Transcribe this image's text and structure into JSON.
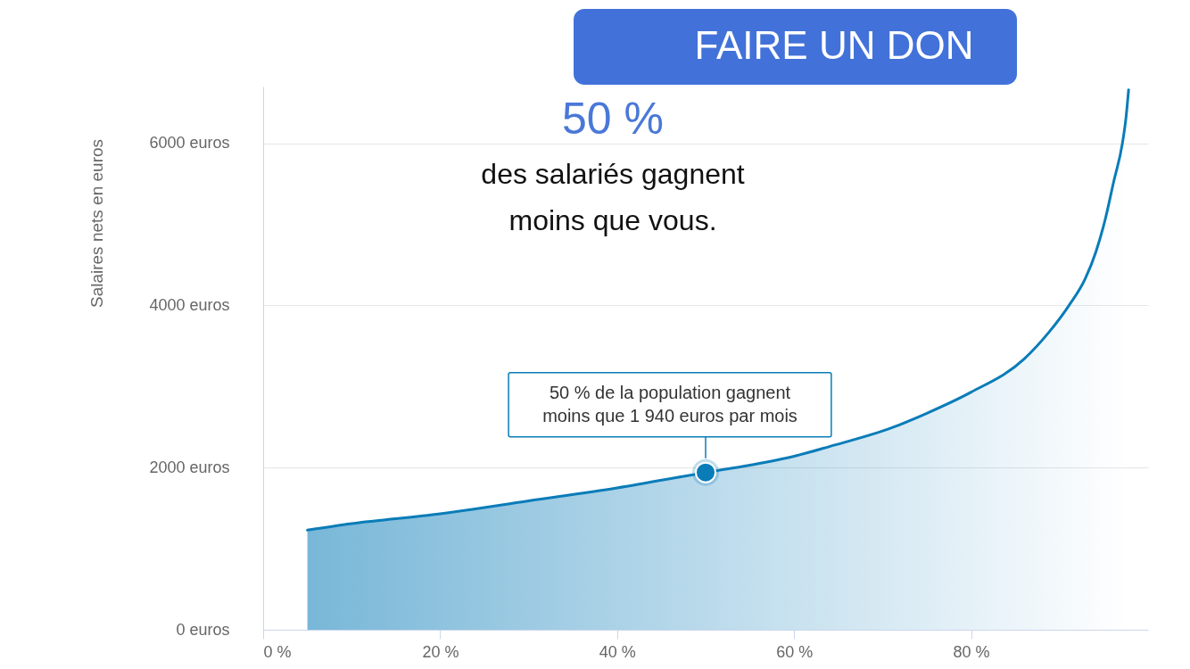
{
  "chart_data": {
    "type": "area",
    "ylabel": "Salaires nets en euros",
    "xlim": [
      0,
      100
    ],
    "xticks": [
      {
        "value": 0,
        "label": "0 %"
      },
      {
        "value": 20,
        "label": "20 %"
      },
      {
        "value": 40,
        "label": "40 %"
      },
      {
        "value": 60,
        "label": "60 %"
      },
      {
        "value": 80,
        "label": "80 %"
      }
    ],
    "ylim": [
      0,
      6700
    ],
    "yticks": [
      {
        "value": 0,
        "label": "0 euros"
      },
      {
        "value": 2000,
        "label": "2000 euros"
      },
      {
        "value": 4000,
        "label": "4000 euros"
      },
      {
        "value": 6000,
        "label": "6000 euros"
      }
    ],
    "grid": "y",
    "x": [
      5,
      10,
      20,
      30,
      40,
      50,
      55,
      60,
      64,
      71,
      75,
      80,
      86,
      88.8,
      91,
      92.9,
      94.1,
      95.2,
      96.1,
      97.1,
      97.5,
      97.8
    ],
    "series": [
      {
        "color": "#0a7cb8",
        "values": [
          1230,
          1310,
          1430,
          1590,
          1750,
          1940,
          2030,
          2140,
          2260,
          2490,
          2670,
          2930,
          3340,
          3670,
          3990,
          4330,
          4660,
          5080,
          5520,
          6000,
          6310,
          6660
        ]
      }
    ],
    "annotations": [
      "FAIRE UN DON",
      "50 %",
      "des salariés gagnent moins que vous.",
      {
        "text": "50 % de la population gagnent moins que 1 940 euros par mois",
        "x": 50,
        "y": 1940
      }
    ]
  }
}
